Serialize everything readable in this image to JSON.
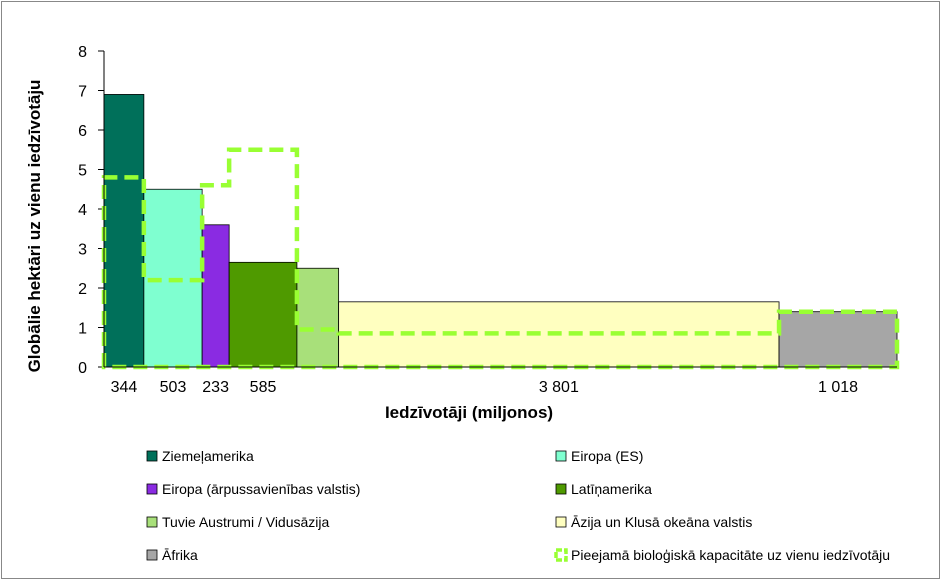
{
  "chart_data": {
    "type": "bar",
    "ylabel": "Globālie hektāri uz vienu iedzīvotāju",
    "xlabel": "Iedzīvotāji (miljonos)",
    "ylim": [
      0,
      8
    ],
    "yticks": [
      "0",
      "1",
      "2",
      "3",
      "4",
      "5",
      "6",
      "7",
      "8"
    ],
    "regions": [
      {
        "name": "Ziemeļamerika",
        "population": 344,
        "population_label": "344",
        "footprint": 6.9,
        "biocapacity": 4.8,
        "color": "#00705A"
      },
      {
        "name": "Eiropa (ES)",
        "population": 503,
        "population_label": "503",
        "footprint": 4.5,
        "biocapacity": 2.2,
        "color": "#7FFFD0"
      },
      {
        "name": "Eiropa (ārpussavienības valstis)",
        "population": 233,
        "population_label": "233",
        "footprint": 3.6,
        "biocapacity": 4.6,
        "color": "#8A2BE2"
      },
      {
        "name": "Latīņamerika",
        "population": 585,
        "population_label": "585",
        "footprint": 2.65,
        "biocapacity": 5.5,
        "color": "#4F9A00"
      },
      {
        "name": "Tuvie Austrumi / Vidusāzija",
        "population": 360,
        "population_label": "",
        "footprint": 2.5,
        "biocapacity": 0.95,
        "color": "#A8E07A"
      },
      {
        "name": "Āzija un Klusā okeāna valstis",
        "population": 3801,
        "population_label": "3 801",
        "footprint": 1.65,
        "biocapacity": 0.85,
        "color": "#FFFFC0"
      },
      {
        "name": "Āfrika",
        "population": 1018,
        "population_label": "1 018",
        "footprint": 1.4,
        "biocapacity": 1.4,
        "color": "#A6A6A6"
      }
    ],
    "biocapacity_series_name": "Pieejamā bioloģiskā kapacitāte uz vienu iedzīvotāju",
    "biocapacity_color": "#99FF33",
    "legend_placement": "bottom"
  }
}
